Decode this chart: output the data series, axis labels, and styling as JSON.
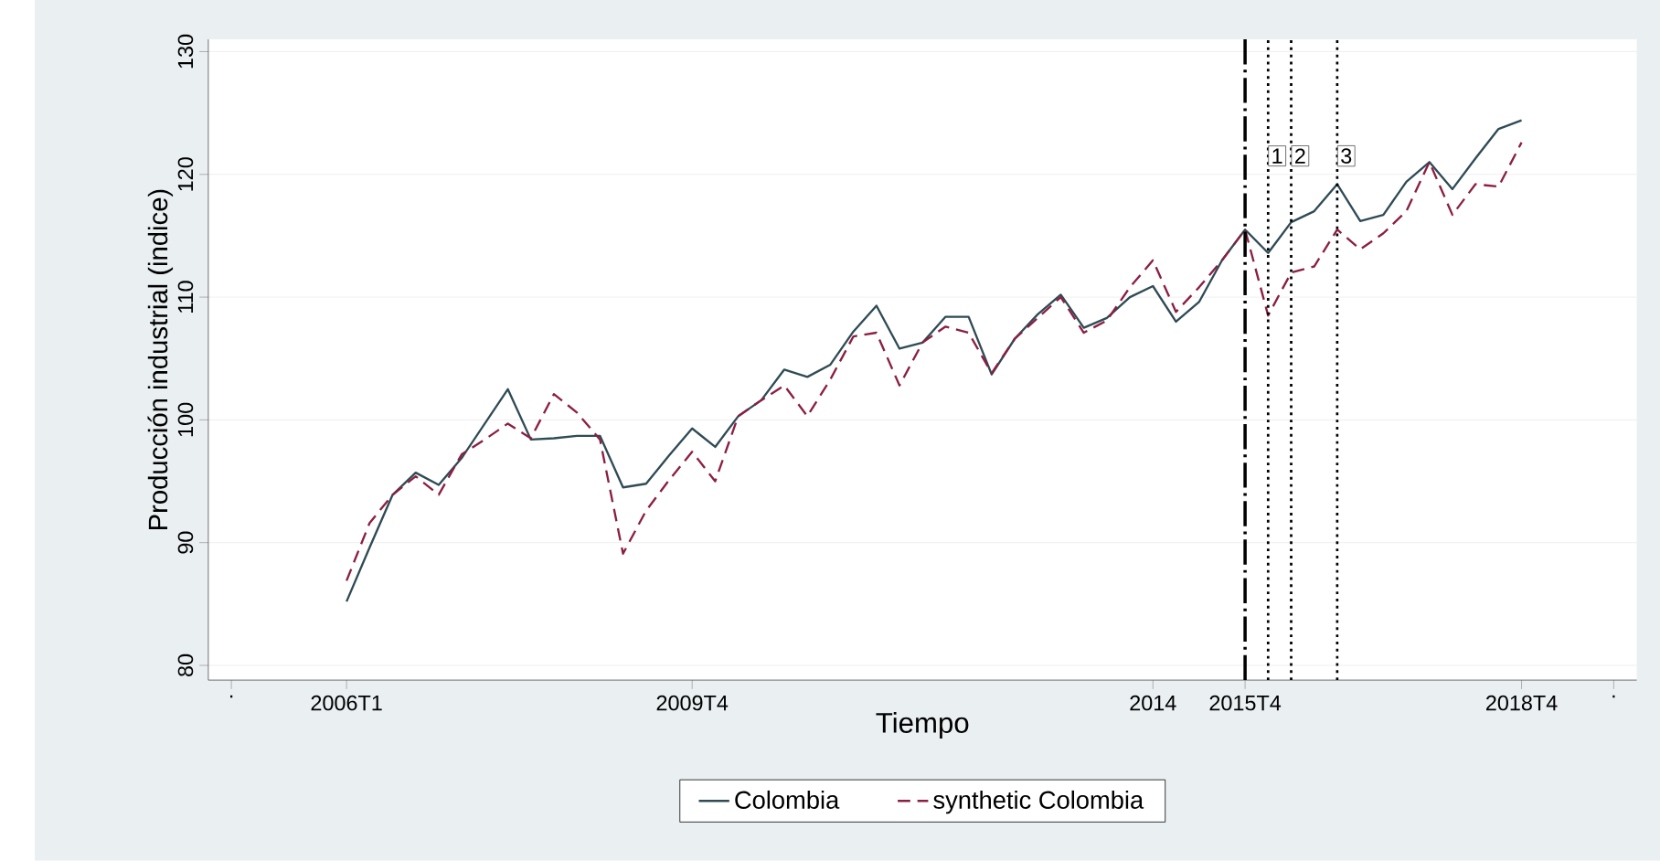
{
  "chart_data": {
    "type": "line",
    "xlabel": "Tiempo",
    "ylabel": "Producción industrial (indice)",
    "x": [
      "2006-01",
      "2006-04",
      "2006-07",
      "2006-10",
      "2007-01",
      "2007-04",
      "2007-07",
      "2007-10",
      "2008-01",
      "2008-04",
      "2008-07",
      "2008-10",
      "2009-01",
      "2009-04",
      "2009-07",
      "2009-10",
      "2010-01",
      "2010-04",
      "2010-07",
      "2010-10",
      "2011-01",
      "2011-04",
      "2011-07",
      "2011-10",
      "2012-01",
      "2012-04",
      "2012-07",
      "2012-10",
      "2013-01",
      "2013-04",
      "2013-07",
      "2013-10",
      "2014-01",
      "2014-04",
      "2014-07",
      "2014-10",
      "2015-01",
      "2015-04",
      "2015-07",
      "2015-10",
      "2016-01",
      "2016-04",
      "2016-07",
      "2016-10",
      "2017-01",
      "2017-04",
      "2017-07",
      "2017-10",
      "2018-01",
      "2018-04",
      "2018-07",
      "2018-10"
    ],
    "series": [
      {
        "name": "Colombia",
        "color": "#2f4b55",
        "line_style": "solid",
        "values": [
          85.2,
          89.6,
          93.9,
          95.7,
          94.7,
          96.9,
          99.7,
          102.5,
          98.4,
          98.5,
          98.7,
          98.7,
          94.5,
          94.8,
          97.1,
          99.3,
          97.8,
          100.3,
          101.6,
          104.1,
          103.5,
          104.5,
          107.2,
          109.3,
          105.8,
          106.3,
          108.4,
          108.4,
          103.7,
          106.6,
          108.6,
          110.2,
          107.5,
          108.3,
          110.0,
          110.9,
          108.0,
          109.6,
          113.0,
          115.5,
          113.6,
          116.1,
          117.0,
          119.2,
          116.2,
          116.7,
          119.4,
          121.0,
          118.8,
          121.3,
          123.7,
          124.4
        ]
      },
      {
        "name": "synthetic Colombia",
        "color": "#8b1f42",
        "line_style": "dashed",
        "values": [
          86.9,
          91.6,
          93.9,
          95.4,
          93.9,
          97.2,
          98.4,
          99.7,
          98.5,
          102.1,
          100.6,
          98.4,
          89.1,
          92.6,
          95.1,
          97.4,
          95.0,
          100.3,
          101.6,
          102.8,
          100.3,
          103.3,
          106.8,
          107.1,
          102.8,
          106.3,
          107.6,
          107.1,
          103.8,
          106.6,
          108.3,
          110.0,
          107.1,
          108.1,
          110.8,
          113.0,
          108.8,
          110.8,
          113.0,
          115.5,
          108.5,
          112.0,
          112.5,
          115.5,
          113.9,
          115.2,
          117.0,
          121.0,
          116.7,
          119.2,
          119.0,
          122.6
        ]
      }
    ],
    "xlim": [
      "2004-07",
      "2020-01"
    ],
    "ylim": [
      78.8,
      131
    ],
    "xticks": [
      {
        "value": "2004-10",
        "label": "."
      },
      {
        "value": "2006-01",
        "label": "2006T1"
      },
      {
        "value": "2009-10",
        "label": "2009T4"
      },
      {
        "value": "2014-10",
        "label": "2014"
      },
      {
        "value": "2015-10",
        "label": "2015T4"
      },
      {
        "value": "2018-10",
        "label": "2018T4"
      },
      {
        "value": "2019-10",
        "label": "."
      }
    ],
    "yticks": [
      80,
      90,
      100,
      110,
      120,
      130
    ],
    "ref_lines": [
      {
        "axis": "x",
        "value": "2015-10",
        "line_style": "dashed",
        "color": "#000000"
      },
      {
        "axis": "x",
        "value": "2016-01",
        "line_style": "dotted",
        "color": "#000000"
      },
      {
        "axis": "x",
        "value": "2016-04",
        "line_style": "dotted",
        "color": "#000000"
      },
      {
        "axis": "x",
        "value": "2016-10",
        "line_style": "dotted",
        "color": "#000000"
      }
    ],
    "annotations": [
      {
        "text": "1",
        "x": "2016-01",
        "y": 121.5
      },
      {
        "text": "2",
        "x": "2016-04",
        "y": 121.5
      },
      {
        "text": "3",
        "x": "2016-10",
        "y": 121.5
      }
    ],
    "grid": "y",
    "legend": "bottom",
    "marker": "none"
  }
}
